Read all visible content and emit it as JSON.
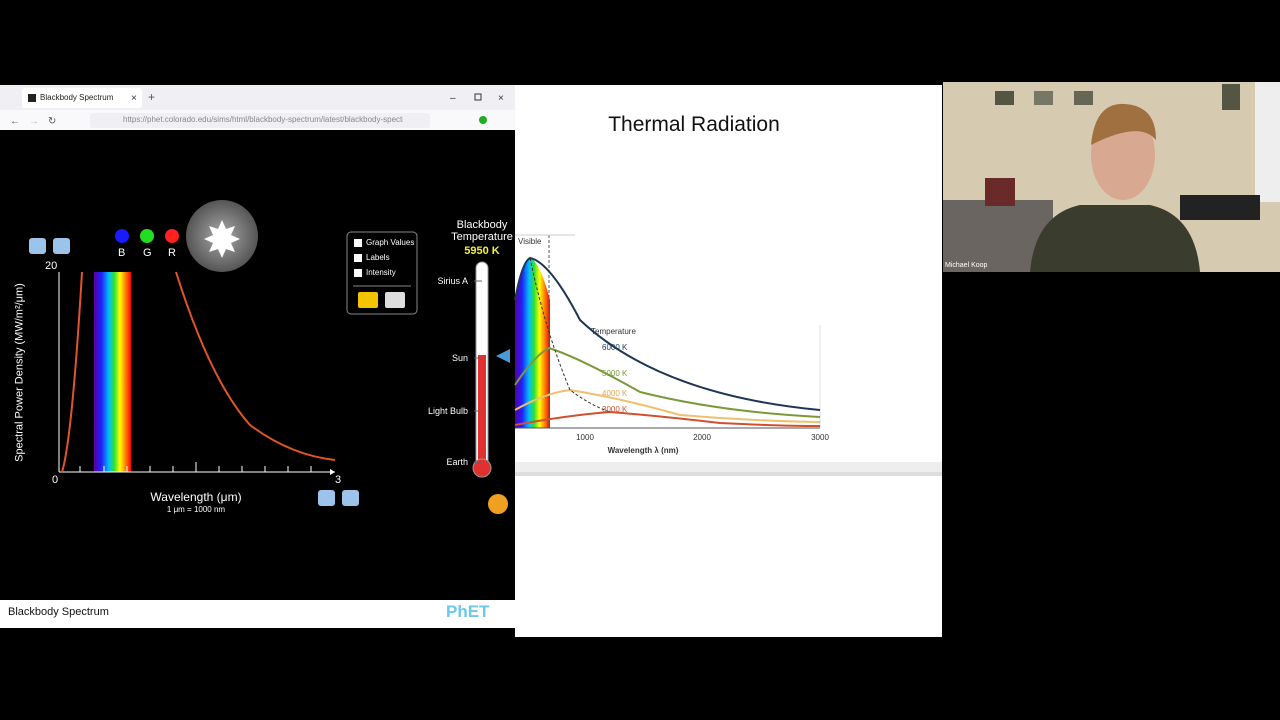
{
  "browser": {
    "tab_title": "Blackbody Spectrum",
    "url": "https://phet.colorado.edu/sims/html/blackbody-spectrum/latest/blackbody-spectrum_e"
  },
  "simulation": {
    "y_axis_label": "Spectral Power Density (MW/m²/μm)",
    "y_max": "20",
    "x_min": "0",
    "x_max": "3",
    "x_axis_label": "Wavelength (μm)",
    "unit_note": "1 μm = 1000 nm",
    "color_sensors": [
      "B",
      "G",
      "R"
    ],
    "options": [
      "Graph Values",
      "Labels",
      "Intensity"
    ],
    "thermometer_title": "Blackbody Temperature",
    "temperature": "5950 K",
    "thermometer_labels": [
      "Sirius A",
      "Sun",
      "Light Bulb",
      "Earth"
    ],
    "footer_title": "Blackbody Spectrum",
    "logo": "PhET"
  },
  "slide": {
    "title": "Thermal Radiation",
    "visible_label": "Visible",
    "legend_title": "Temperature",
    "curves": [
      "6000 K",
      "5000 K",
      "4000 K",
      "3000 K"
    ],
    "x_ticks": [
      "1000",
      "2000",
      "3000"
    ],
    "x_axis_label": "Wavelength λ (nm)"
  },
  "webcam": {
    "name": "Michael Koop"
  }
}
